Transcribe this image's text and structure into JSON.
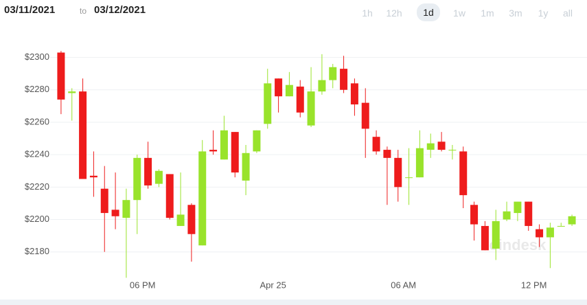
{
  "header": {
    "from": "03/11/2021",
    "separator": "to",
    "to": "03/12/2021",
    "ranges": [
      "1h",
      "12h",
      "1d",
      "1w",
      "1m",
      "3m",
      "1y",
      "all"
    ],
    "selected": 2
  },
  "chart_data": {
    "type": "candlestick",
    "watermark": "coindesk",
    "open": [
      2303,
      2278,
      2279,
      2227,
      2219,
      2206,
      2201,
      2212,
      2238,
      2222,
      2228,
      2196,
      2209,
      2184,
      2243,
      2237,
      2254,
      2224,
      2242,
      2259,
      2287,
      2276,
      2282,
      2258,
      2279,
      2286,
      2293,
      2284,
      2272,
      2251,
      2243,
      2238,
      2226,
      2226,
      2243,
      2248,
      2243,
      2242,
      2209,
      2196,
      2182,
      2200,
      2204,
      2211,
      2194,
      2189,
      2196,
      2197
    ],
    "high": [
      2304,
      2281,
      2287,
      2242,
      2233,
      2229,
      2219,
      2240,
      2248,
      2231,
      2228,
      2229,
      2210,
      2249,
      2255,
      2264,
      2254,
      2246,
      2255,
      2293,
      2287,
      2291,
      2286,
      2294,
      2302,
      2296,
      2301,
      2287,
      2281,
      2255,
      2245,
      2243,
      2244,
      2255,
      2253,
      2254,
      2246,
      2245,
      2211,
      2199,
      2206,
      2211,
      2211,
      2211,
      2197,
      2198,
      2198,
      2203
    ],
    "low": [
      2265,
      2261,
      2225,
      2214,
      2180,
      2194,
      2164,
      2191,
      2219,
      2220,
      2200,
      2196,
      2174,
      2184,
      2240,
      2237,
      2226,
      2215,
      2241,
      2256,
      2266,
      2276,
      2263,
      2257,
      2277,
      2281,
      2278,
      2264,
      2238,
      2240,
      2209,
      2211,
      2209,
      2226,
      2238,
      2242,
      2237,
      2207,
      2187,
      2181,
      2175,
      2199,
      2199,
      2193,
      2183,
      2170,
      2196,
      2196
    ],
    "close": [
      2274,
      2279,
      2225,
      2226,
      2204,
      2202,
      2212,
      2238,
      2221,
      2230,
      2201,
      2203,
      2191,
      2242,
      2242,
      2255,
      2229,
      2241,
      2255,
      2284,
      2276,
      2283,
      2266,
      2279,
      2286,
      2294,
      2280,
      2271,
      2256,
      2242,
      2238,
      2220,
      2226,
      2244,
      2247,
      2243,
      2243,
      2215,
      2197,
      2181,
      2199,
      2205,
      2211,
      2196,
      2189,
      2195,
      2196,
      2202
    ],
    "up_color": "#99e32b",
    "down_color": "#ee1c1c",
    "ylim": [
      2168,
      2310
    ],
    "yticks": [
      {
        "value": 2180,
        "label": "$2180"
      },
      {
        "value": 2200,
        "label": "$2200"
      },
      {
        "value": 2220,
        "label": "$2220"
      },
      {
        "value": 2240,
        "label": "$2240"
      },
      {
        "value": 2260,
        "label": "$2260"
      },
      {
        "value": 2280,
        "label": "$2280"
      },
      {
        "value": 2300,
        "label": "$2300"
      }
    ],
    "xlim": [
      -0.5,
      47.5
    ],
    "xticks": [
      {
        "value": 7.5,
        "label": "06 PM"
      },
      {
        "value": 19.5,
        "label": "Apr 25"
      },
      {
        "value": 31.5,
        "label": "06 AM"
      },
      {
        "value": 43.5,
        "label": "12 PM"
      }
    ],
    "grid": true
  }
}
